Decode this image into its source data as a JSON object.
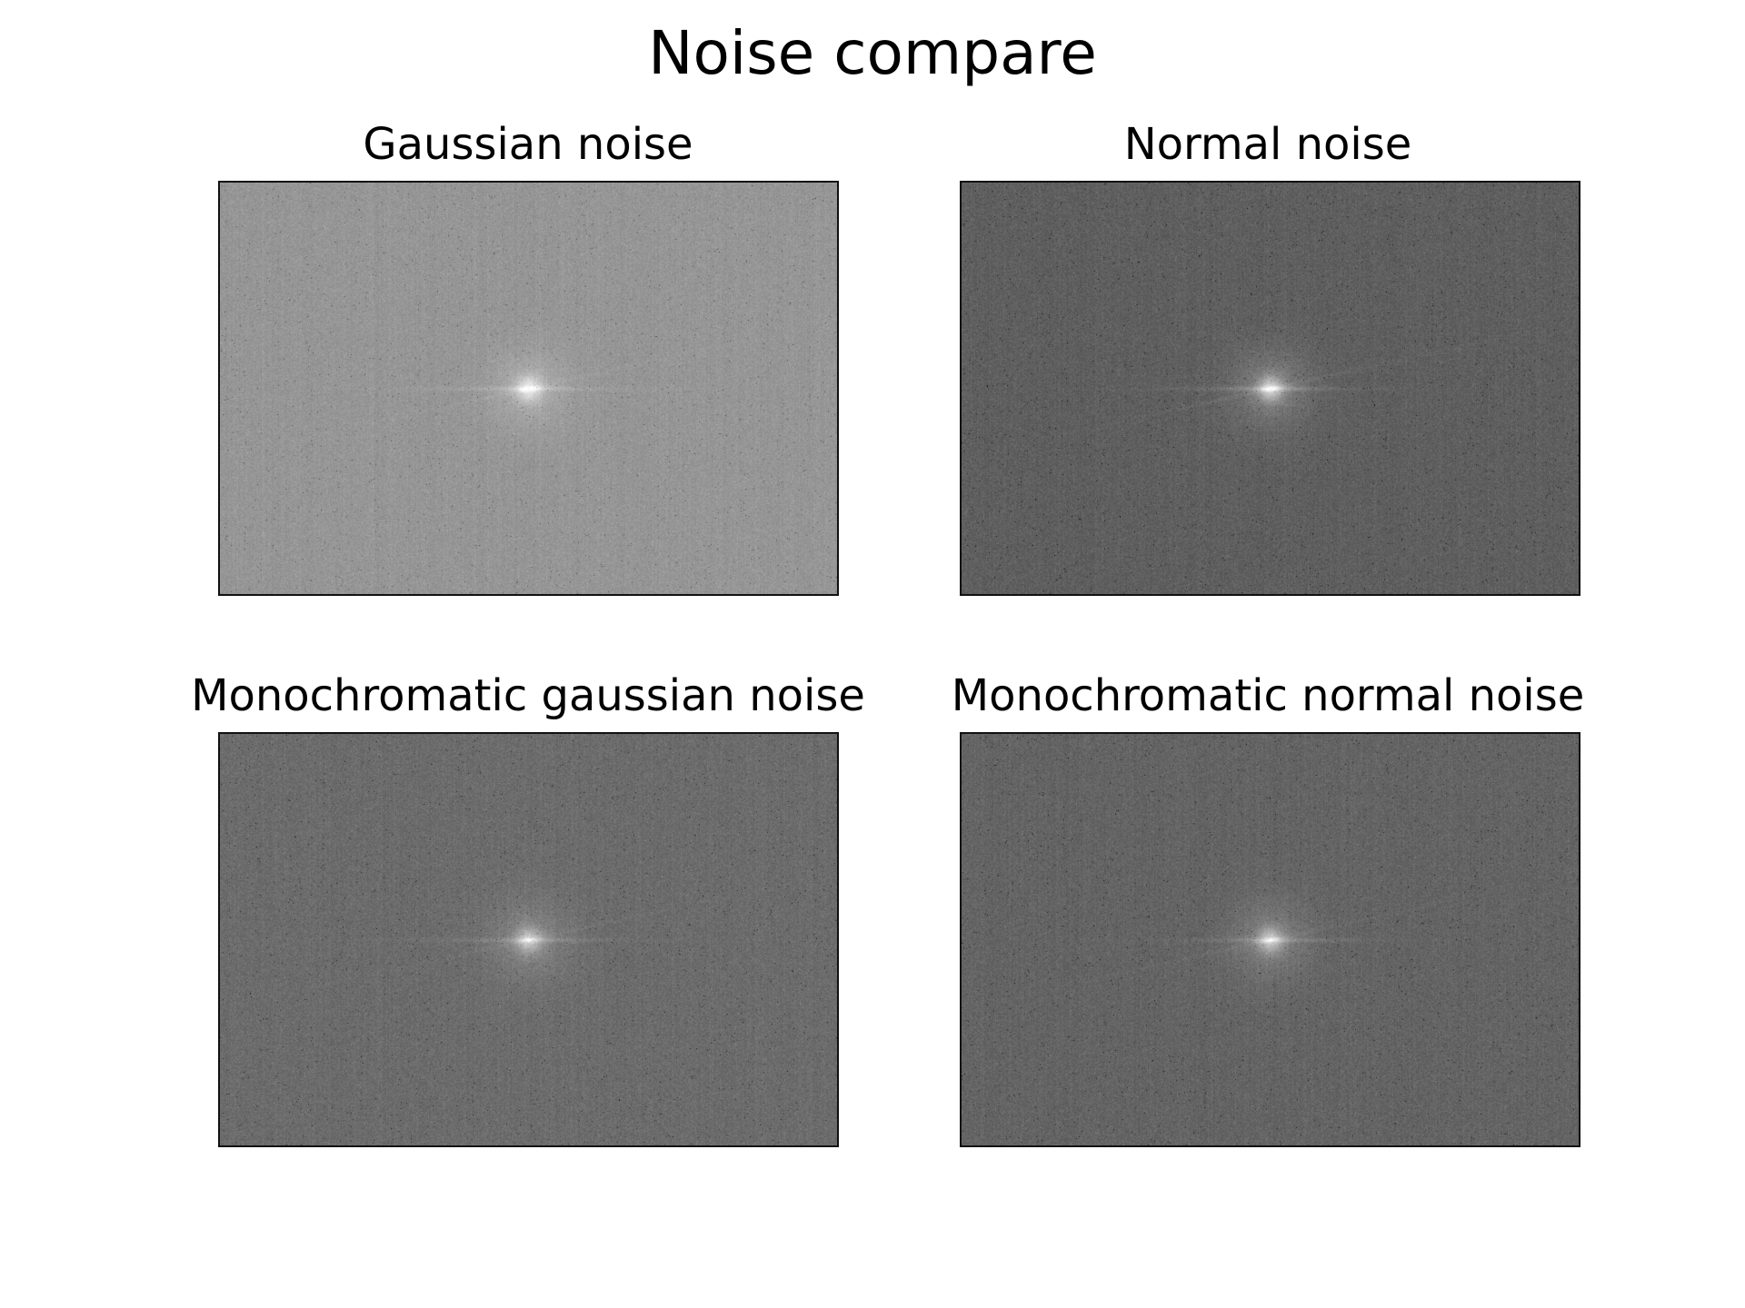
{
  "figure": {
    "title": "Noise compare"
  },
  "panels": [
    {
      "title": "Gaussian noise",
      "base_gray": 150,
      "spread": 14,
      "star_strength": 0.55
    },
    {
      "title": "Normal noise",
      "base_gray": 95,
      "spread": 16,
      "star_strength": 0.75
    },
    {
      "title": "Monochromatic gaussian noise",
      "base_gray": 108,
      "spread": 16,
      "star_strength": 0.6
    },
    {
      "title": "Monochromatic normal noise",
      "base_gray": 100,
      "spread": 16,
      "star_strength": 0.65
    }
  ],
  "colors": {
    "frame": "#111111",
    "background": "#ffffff"
  }
}
